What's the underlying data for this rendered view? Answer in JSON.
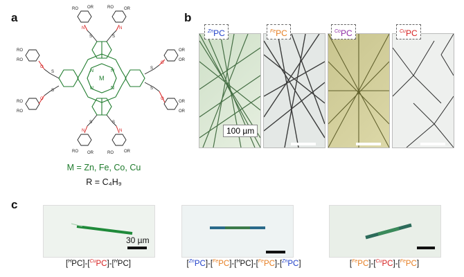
{
  "panels": {
    "a": "a",
    "b": "b",
    "c": "c"
  },
  "molecule": {
    "center_label": "M",
    "n_labels": [
      "N",
      "N",
      "N",
      "N"
    ],
    "substituent_S": "S",
    "substituent_O": "O",
    "substituent_N": "N",
    "substituent_H": "H",
    "substituent_RO": "RO",
    "substituent_OR": "OR"
  },
  "legend": {
    "metals": "M = Zn, Fe, Co, Cu",
    "r_group": "R = C₄H₉"
  },
  "micrographs": [
    {
      "sup": "Zn",
      "text": "PC",
      "color": "#1f3fc8"
    },
    {
      "sup": "Fe",
      "text": "PC",
      "color": "#e67e22"
    },
    {
      "sup": "Co",
      "text": "PC",
      "color": "#8e2ba6"
    },
    {
      "sup": "Cu",
      "text": "PC",
      "color": "#d62020"
    }
  ],
  "scale_b": "100 µm",
  "scale_c": "30 µm",
  "crystals": [
    {
      "parts": [
        [
          "H",
          "PC",
          "blk"
        ],
        [
          "Cu",
          "PC",
          "red"
        ],
        [
          "H",
          "PC",
          "blk"
        ]
      ]
    },
    {
      "parts": [
        [
          "Zn",
          "PC",
          "blue"
        ],
        [
          "Fe",
          "PC",
          "orange"
        ],
        [
          "H",
          "PC",
          "blk"
        ],
        [
          "Fe",
          "PC",
          "orange"
        ],
        [
          "Zn",
          "PC",
          "blue"
        ]
      ]
    },
    {
      "parts": [
        [
          "Fe",
          "PC",
          "orange"
        ],
        [
          "Cu",
          "PC",
          "red"
        ],
        [
          "Fe",
          "PC",
          "orange"
        ]
      ]
    }
  ],
  "colors": {
    "green": "#1e7b2c",
    "red": "#d62020"
  }
}
